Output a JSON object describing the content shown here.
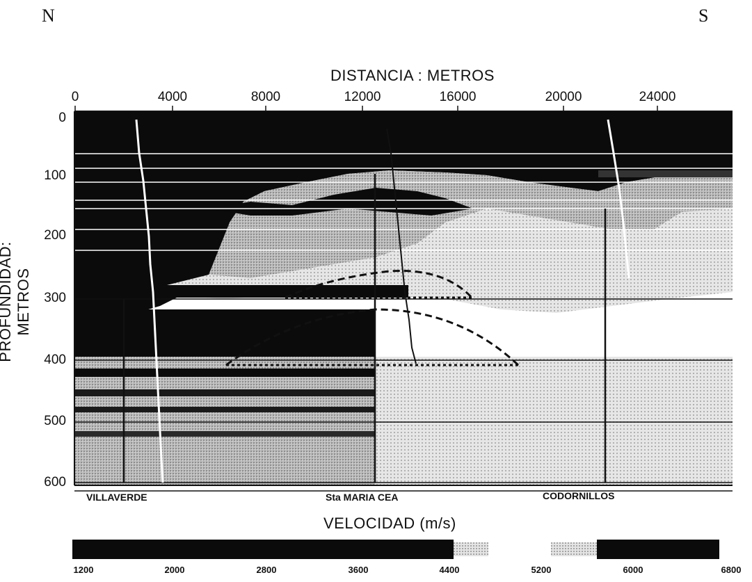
{
  "compass": {
    "north": "N",
    "south": "S"
  },
  "x_axis": {
    "title": "DISTANCIA : METROS",
    "ticks": [
      "0",
      "4000",
      "8000",
      "12000",
      "16000",
      "20000",
      "24000"
    ]
  },
  "y_axis": {
    "title": "PROFUNDIDAD: METROS",
    "ticks": [
      "0",
      "100",
      "200",
      "300",
      "400",
      "500",
      "600"
    ]
  },
  "wells": [
    "VILLAVERDE",
    "Sta MARIA CEA",
    "CODORNILLOS"
  ],
  "colorbar": {
    "title": "VELOCIDAD (m/s)",
    "ticks": [
      "1200",
      "2000",
      "2800",
      "3600",
      "4400",
      "5200",
      "6000",
      "6800"
    ]
  },
  "colors": {
    "dark": "#0b0b0b",
    "grey": "#a9a9a9",
    "light": "#d9d9d9",
    "background": "#ffffff"
  }
}
